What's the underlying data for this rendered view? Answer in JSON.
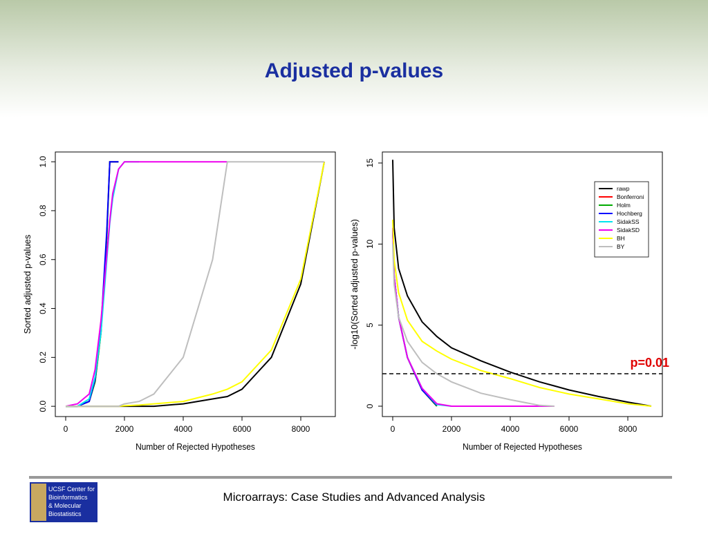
{
  "slide_title": "Adjusted p-values",
  "footer": {
    "text": "Microarrays: Case Studies and Advanced Analysis",
    "logo_lines": [
      "UCSF Center for",
      "Bioinformatics",
      "& Molecular",
      "Biostatistics"
    ]
  },
  "chart_data": [
    {
      "type": "line",
      "xlabel": "Number of Rejected Hypotheses",
      "ylabel": "Sorted adjusted p-values",
      "xlim": [
        -353,
        9176
      ],
      "ylim": [
        -0.042,
        1.04
      ],
      "xticks": [
        0,
        2000,
        4000,
        6000,
        8000
      ],
      "yticks": [
        {
          "value": 0,
          "label": "0.0"
        },
        0.2,
        0.4,
        0.6,
        0.8,
        {
          "value": 1,
          "label": "1.0"
        }
      ],
      "x": [
        0,
        400,
        800,
        1000,
        1200,
        1400,
        1500,
        1600,
        1800,
        2000,
        2500,
        3000,
        4000,
        5000,
        5500,
        6000,
        7000,
        8000,
        8800
      ],
      "series": [
        {
          "color": "#000000",
          "values": [
            0,
            0,
            0,
            0,
            0,
            0,
            0,
            0,
            0,
            0,
            0,
            0,
            0.01,
            0.03,
            0.04,
            0.07,
            0.2,
            0.5,
            1
          ]
        },
        {
          "color": "#ff0000",
          "values": [
            0,
            0,
            0.02,
            0.1,
            0.3,
            0.7,
            1,
            1,
            1,
            null,
            null,
            null,
            null,
            null,
            null,
            null,
            null,
            null,
            null
          ]
        },
        {
          "color": "#00aa00",
          "values": [
            0,
            0,
            0.02,
            0.1,
            0.3,
            0.7,
            1,
            1,
            1,
            null,
            null,
            null,
            null,
            null,
            null,
            null,
            null,
            null,
            null
          ]
        },
        {
          "color": "#0000ff",
          "values": [
            0,
            0,
            0.02,
            0.11,
            0.32,
            0.72,
            1,
            1,
            1,
            null,
            null,
            null,
            null,
            null,
            null,
            null,
            null,
            null,
            null
          ]
        },
        {
          "color": "#00e5ee",
          "values": [
            0,
            0,
            0.03,
            0.12,
            0.3,
            0.6,
            0.75,
            0.85,
            0.97,
            1,
            1,
            null,
            null,
            null,
            null,
            null,
            null,
            null,
            null
          ]
        },
        {
          "color": "#ee00ee",
          "values": [
            0,
            0.01,
            0.05,
            0.15,
            0.35,
            0.62,
            0.76,
            0.87,
            0.97,
            1,
            1,
            1,
            1,
            1,
            1,
            null,
            null,
            null,
            null
          ]
        },
        {
          "color": "#ffff00",
          "values": [
            0,
            0,
            0,
            0,
            0,
            0,
            0,
            0,
            0,
            0.002,
            0.005,
            0.01,
            0.02,
            0.05,
            0.07,
            0.1,
            0.23,
            0.52,
            1
          ]
        },
        {
          "color": "#bebebe",
          "values": [
            0,
            0,
            0,
            0,
            0,
            0,
            0,
            0,
            0,
            0.01,
            0.02,
            0.05,
            0.2,
            0.6,
            1,
            1,
            1,
            1,
            1
          ]
        }
      ]
    },
    {
      "type": "line",
      "xlabel": "Number of Rejected Hypotheses",
      "ylabel": "-log10(Sorted adjusted p-values)",
      "xlim": [
        -353,
        9176
      ],
      "ylim": [
        -0.64,
        15.68
      ],
      "xticks": [
        0,
        2000,
        4000,
        6000,
        8000
      ],
      "yticks": [
        0,
        5,
        10,
        15
      ],
      "legend": "topright",
      "hline": {
        "value": 2,
        "label": "p=0.01",
        "color": "#e00000"
      },
      "x": [
        0,
        50,
        200,
        500,
        1000,
        1500,
        2000,
        3000,
        4000,
        5000,
        5500,
        6000,
        7000,
        8000,
        8800
      ],
      "series": [
        {
          "name": "rawp",
          "color": "#000000",
          "values": [
            15.2,
            11,
            8.5,
            6.8,
            5.2,
            4.3,
            3.6,
            2.8,
            2.1,
            1.5,
            1.25,
            1.0,
            0.6,
            0.25,
            0
          ]
        },
        {
          "name": "Bonferroni",
          "color": "#ff0000",
          "values": [
            11,
            8,
            5.5,
            3,
            1,
            0,
            null,
            null,
            null,
            null,
            null,
            null,
            null,
            null,
            null
          ]
        },
        {
          "name": "Holm",
          "color": "#00aa00",
          "values": [
            11,
            8,
            5.5,
            3,
            1,
            0,
            null,
            null,
            null,
            null,
            null,
            null,
            null,
            null,
            null
          ]
        },
        {
          "name": "Hochberg",
          "color": "#0000ff",
          "values": [
            11,
            8,
            5.5,
            3,
            1,
            0.05,
            null,
            null,
            null,
            null,
            null,
            null,
            null,
            null,
            null
          ]
        },
        {
          "name": "SidakSS",
          "color": "#00e5ee",
          "values": [
            11,
            8,
            5.5,
            3,
            1.1,
            0.1,
            0,
            null,
            null,
            null,
            null,
            null,
            null,
            null,
            null
          ]
        },
        {
          "name": "SidakSD",
          "color": "#ee00ee",
          "values": [
            11,
            8,
            5.5,
            3,
            1.1,
            0.15,
            0,
            0,
            0,
            0,
            0,
            null,
            null,
            null,
            null
          ]
        },
        {
          "name": "BH",
          "color": "#ffff00",
          "values": [
            11.5,
            9,
            7,
            5.3,
            4.0,
            3.4,
            2.9,
            2.2,
            1.7,
            1.15,
            0.95,
            0.75,
            0.45,
            0.15,
            0
          ]
        },
        {
          "name": "BY",
          "color": "#bebebe",
          "values": [
            10,
            7.5,
            5.5,
            4,
            2.7,
            2.0,
            1.5,
            0.8,
            0.4,
            0.05,
            0,
            null,
            null,
            null,
            null
          ]
        }
      ]
    }
  ]
}
